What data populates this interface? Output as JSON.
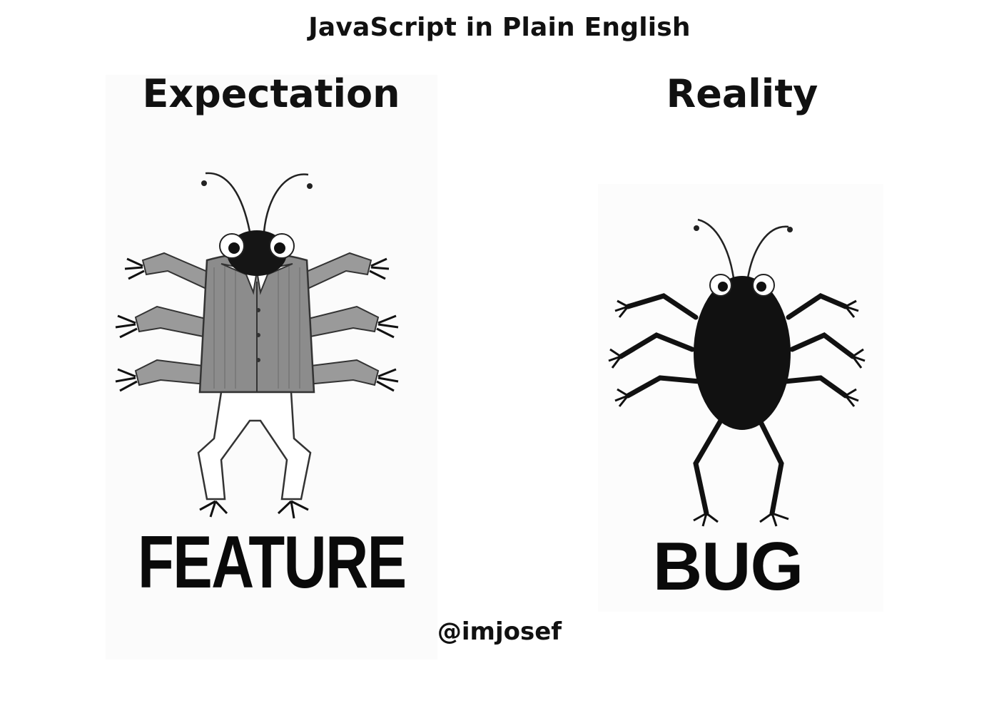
{
  "header": {
    "title": "JavaScript in Plain English"
  },
  "panels": {
    "left": {
      "heading": "Expectation",
      "label": "FEATURE"
    },
    "right": {
      "heading": "Reality",
      "label": "BUG"
    }
  },
  "footer": {
    "author": "@imjosef"
  },
  "colors": {
    "ink": "#111111",
    "jacket": "#8c8c8c",
    "bug_body": "#111111",
    "background": "#ffffff"
  }
}
